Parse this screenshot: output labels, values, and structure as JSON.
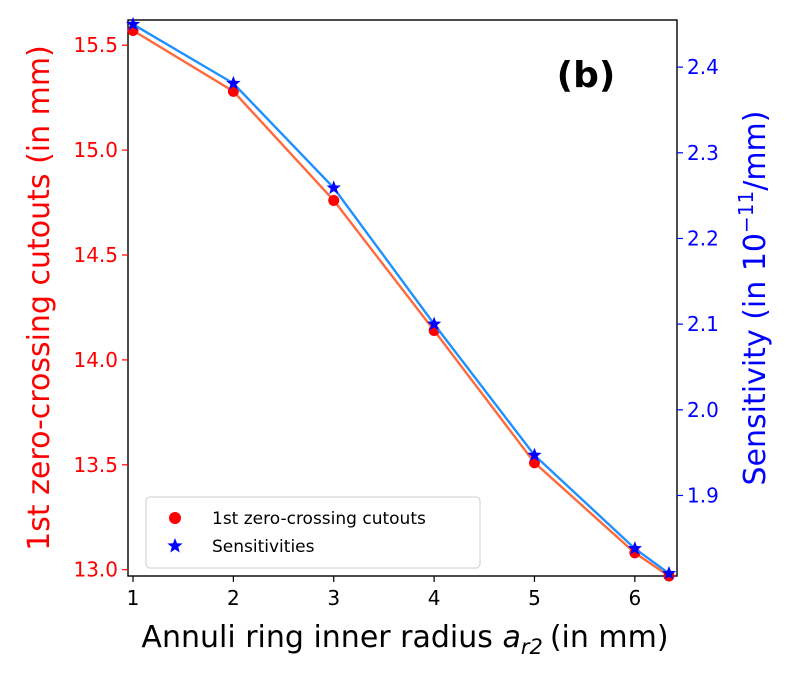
{
  "chart_data": {
    "type": "line",
    "panel_label": "(b)",
    "xlabel": "Annuli ring inner radius",
    "xlabel_symbol": "a",
    "xlabel_subscript": "r2",
    "xlabel_unit": "(in mm)",
    "ylabel_left": "1st zero-crossing cutouts (in mm)",
    "ylabel_right_base": "Sensitivity (in 10",
    "ylabel_right_exp": "−11",
    "ylabel_right_tail": "/mm)",
    "xlim": [
      0.95,
      6.42
    ],
    "ylim_left": [
      12.97,
      15.62
    ],
    "ylim_right": [
      1.806,
      2.455
    ],
    "x_ticks": [
      1,
      2,
      3,
      4,
      5,
      6
    ],
    "y_left_ticks": [
      "13.0",
      "13.5",
      "14.0",
      "14.5",
      "15.0",
      "15.5"
    ],
    "y_right_ticks": [
      "1.9",
      "2.0",
      "2.1",
      "2.2",
      "2.3",
      "2.4"
    ],
    "grid": false,
    "legend_position": "lower-left",
    "colors": {
      "left_axis": "#ff0000",
      "right_axis": "#0000ff",
      "cutouts_line": "#ff6a3d",
      "sensitivity_line": "#1e90ff",
      "cutouts_marker": "#ff0000",
      "sensitivity_marker": "#0000ff"
    },
    "series": [
      {
        "name": "1st zero-crossing cutouts",
        "axis": "left",
        "marker": "circle",
        "x": [
          1,
          2,
          3,
          4,
          5,
          6,
          6.34
        ],
        "values": [
          15.57,
          15.28,
          14.76,
          14.14,
          13.51,
          13.08,
          12.97
        ]
      },
      {
        "name": "Sensitivities",
        "axis": "right",
        "marker": "star",
        "x": [
          1,
          2,
          3,
          4,
          5,
          6,
          6.34
        ],
        "values": [
          2.45,
          2.381,
          2.259,
          2.1,
          1.947,
          1.838,
          1.809
        ]
      }
    ]
  }
}
